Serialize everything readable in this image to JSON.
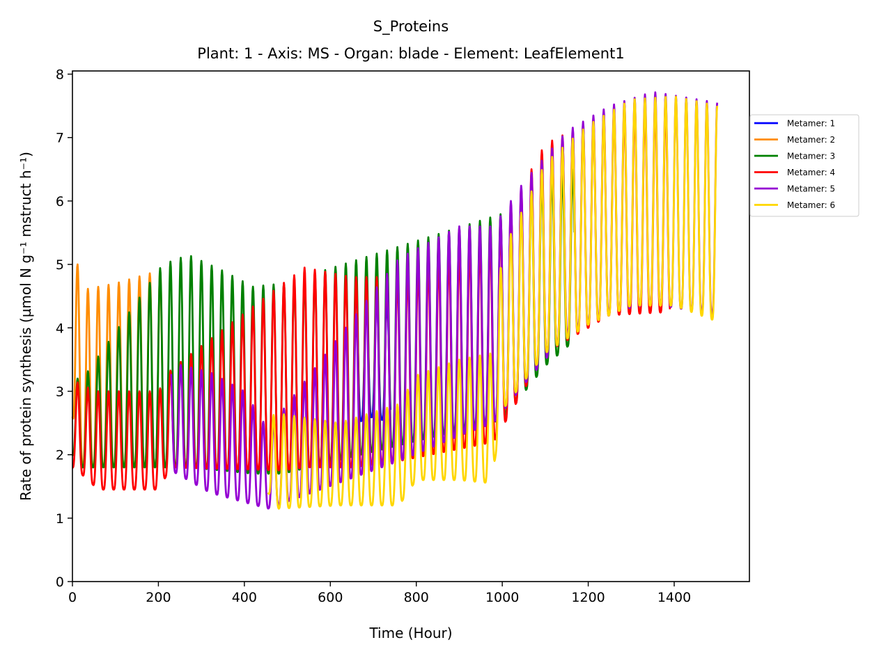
{
  "chart_data": {
    "type": "line",
    "title": "S_Proteins",
    "subtitle": "Plant: 1 - Axis: MS - Organ: blade - Element: LeafElement1",
    "xlabel": "Time (Hour)",
    "ylabel": "Rate of protein synthesis (µmol N g⁻¹ mstruct h⁻¹)",
    "xlim": [
      0,
      1575
    ],
    "ylim": [
      0,
      8.05
    ],
    "xticks": [
      0,
      200,
      400,
      600,
      800,
      1000,
      1200,
      1400
    ],
    "yticks": [
      0,
      1,
      2,
      3,
      4,
      5,
      6,
      7,
      8
    ],
    "grid": false,
    "legend_position": "right, outside plot area",
    "period_hours": 24,
    "series": [
      {
        "name": "Metamer: 1",
        "color": "#0000ff",
        "envelope": [
          {
            "t": 660,
            "max": 4.5,
            "min": 2.5
          },
          {
            "t": 700,
            "max": 4.5,
            "min": 2.6
          },
          {
            "t": 740,
            "max": 4.4,
            "min": 2.5
          }
        ]
      },
      {
        "name": "Metamer: 2",
        "color": "#ff8c00",
        "envelope": [
          {
            "t": 0,
            "max": 5.4,
            "min": 2.6
          },
          {
            "t": 24,
            "max": 4.6,
            "min": 1.8
          },
          {
            "t": 100,
            "max": 4.7,
            "min": 1.8
          },
          {
            "t": 200,
            "max": 4.9,
            "min": 1.8
          },
          {
            "t": 216,
            "max": 4.9,
            "min": 1.8
          }
        ]
      },
      {
        "name": "Metamer: 3",
        "color": "#008000",
        "envelope": [
          {
            "t": 0,
            "max": 3.2,
            "min": 2.0
          },
          {
            "t": 24,
            "max": 3.2,
            "min": 1.8
          },
          {
            "t": 210,
            "max": 5.0,
            "min": 1.8
          },
          {
            "t": 270,
            "max": 5.15,
            "min": 1.8
          },
          {
            "t": 350,
            "max": 4.9,
            "min": 1.75
          },
          {
            "t": 420,
            "max": 4.65,
            "min": 1.7
          },
          {
            "t": 490,
            "max": 4.7,
            "min": 1.7
          },
          {
            "t": 1000,
            "max": 5.8,
            "min": 2.55
          },
          {
            "t": 1100,
            "max": 6.4,
            "min": 3.4
          },
          {
            "t": 1168,
            "max": 6.5,
            "min": 3.8
          }
        ]
      },
      {
        "name": "Metamer: 4",
        "color": "#ff0000",
        "envelope": [
          {
            "t": 0,
            "max": 3.2,
            "min": 1.8
          },
          {
            "t": 20,
            "max": 3.1,
            "min": 1.7
          },
          {
            "t": 60,
            "max": 3.0,
            "min": 1.45
          },
          {
            "t": 200,
            "max": 3.0,
            "min": 1.45
          },
          {
            "t": 230,
            "max": 3.35,
            "min": 1.8
          },
          {
            "t": 490,
            "max": 4.7,
            "min": 1.75
          },
          {
            "t": 540,
            "max": 4.95,
            "min": 1.8
          },
          {
            "t": 650,
            "max": 4.8,
            "min": 1.8
          },
          {
            "t": 760,
            "max": 4.8,
            "min": 1.9
          },
          {
            "t": 980,
            "max": 5.4,
            "min": 2.2
          },
          {
            "t": 1100,
            "max": 6.9,
            "min": 3.6
          },
          {
            "t": 1250,
            "max": 7.4,
            "min": 4.2
          },
          {
            "t": 1390,
            "max": 7.5,
            "min": 4.25
          }
        ]
      },
      {
        "name": "Metamer: 5",
        "color": "#9400d3",
        "envelope": [
          {
            "t": 230,
            "max": 3.45,
            "min": 1.75
          },
          {
            "t": 320,
            "max": 3.3,
            "min": 1.4
          },
          {
            "t": 400,
            "max": 3.0,
            "min": 1.25
          },
          {
            "t": 455,
            "max": 2.4,
            "min": 1.15
          },
          {
            "t": 760,
            "max": 5.1,
            "min": 1.9
          },
          {
            "t": 900,
            "max": 5.6,
            "min": 2.3
          },
          {
            "t": 980,
            "max": 5.6,
            "min": 2.5
          },
          {
            "t": 1050,
            "max": 6.3,
            "min": 3.1
          },
          {
            "t": 1150,
            "max": 7.1,
            "min": 3.9
          },
          {
            "t": 1250,
            "max": 7.5,
            "min": 4.25
          },
          {
            "t": 1350,
            "max": 7.72,
            "min": 4.38
          },
          {
            "t": 1500,
            "max": 7.55,
            "min": 4.2
          }
        ]
      },
      {
        "name": "Metamer: 6",
        "color": "#ffd700",
        "envelope": [
          {
            "t": 455,
            "max": 2.6,
            "min": 1.4
          },
          {
            "t": 480,
            "max": 2.65,
            "min": 1.15
          },
          {
            "t": 620,
            "max": 2.5,
            "min": 1.2
          },
          {
            "t": 760,
            "max": 2.8,
            "min": 1.2
          },
          {
            "t": 800,
            "max": 3.25,
            "min": 1.6
          },
          {
            "t": 900,
            "max": 3.5,
            "min": 1.6
          },
          {
            "t": 975,
            "max": 3.6,
            "min": 1.55
          },
          {
            "t": 1000,
            "max": 5.2,
            "min": 2.7
          },
          {
            "t": 1100,
            "max": 6.6,
            "min": 3.6
          },
          {
            "t": 1200,
            "max": 7.2,
            "min": 4.05
          },
          {
            "t": 1300,
            "max": 7.6,
            "min": 4.35
          },
          {
            "t": 1400,
            "max": 7.65,
            "min": 4.35
          },
          {
            "t": 1500,
            "max": 7.5,
            "min": 4.1
          }
        ]
      }
    ]
  }
}
